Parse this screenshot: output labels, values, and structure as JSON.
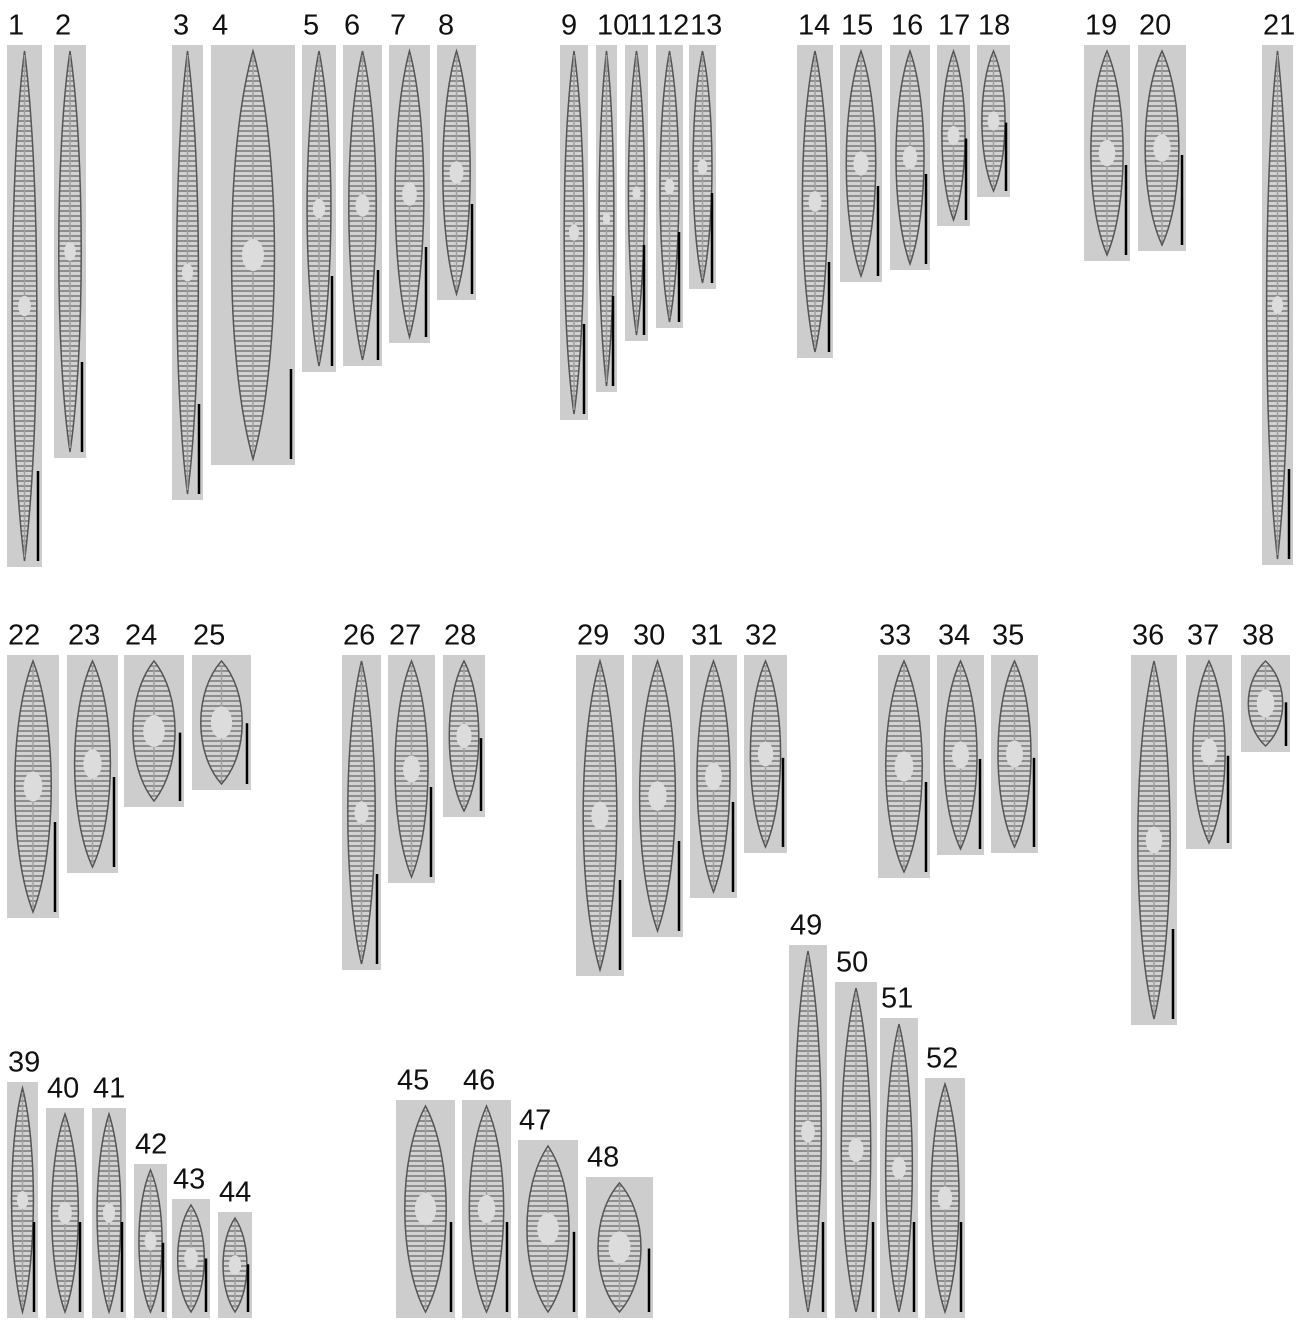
{
  "figure": {
    "panel_labels": [
      "1",
      "2",
      "3",
      "4",
      "5",
      "6",
      "7",
      "8",
      "9",
      "10",
      "11",
      "12",
      "13",
      "14",
      "15",
      "16",
      "17",
      "18",
      "19",
      "20",
      "21",
      "22",
      "23",
      "24",
      "25",
      "26",
      "27",
      "28",
      "29",
      "30",
      "31",
      "32",
      "33",
      "34",
      "35",
      "36",
      "37",
      "38",
      "39",
      "40",
      "41",
      "42",
      "43",
      "44",
      "45",
      "46",
      "47",
      "48",
      "49",
      "50",
      "51",
      "52"
    ]
  }
}
